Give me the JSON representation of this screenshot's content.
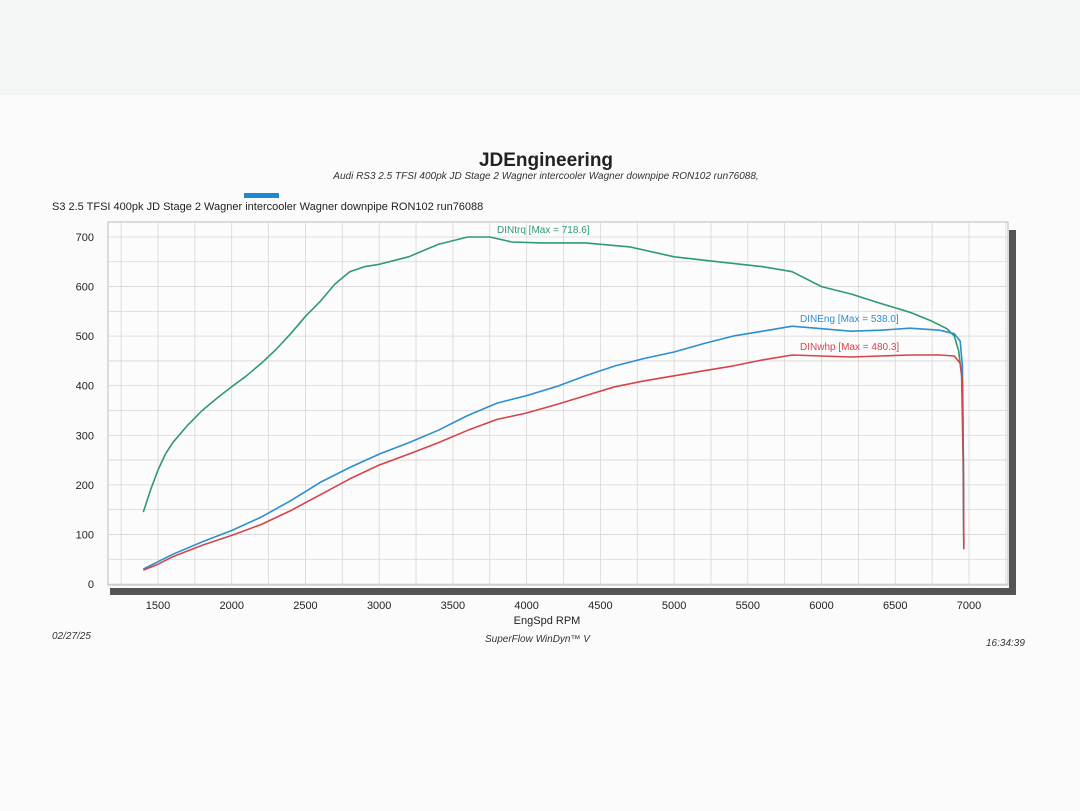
{
  "page": {
    "title": "JDEngineering",
    "subtitle": "Audi RS3 2.5 TFSI 400pk  JD Stage 2  Wagner intercooler Wagner downpipe  RON102  run76088,",
    "run_label": "S3 2.5 TFSI 400pk  JD Stage 2  Wagner intercooler Wagner downpipe  RON102  run76088",
    "date": "02/27/25",
    "software": "SuperFlow WinDyn™ V",
    "time": "16:34:39"
  },
  "chart_data": {
    "type": "line",
    "title": "",
    "xlabel": "EngSpd  RPM",
    "ylabel": "",
    "xlim": [
      1000,
      7300
    ],
    "ylim": [
      0,
      720
    ],
    "x_ticks": [
      1500,
      2000,
      2500,
      3000,
      3500,
      4000,
      4500,
      5000,
      5500,
      6000,
      6500,
      7000
    ],
    "y_ticks": [
      0,
      100,
      200,
      300,
      400,
      500,
      600,
      700
    ],
    "grid": true,
    "legend_color": "#1d8ad0",
    "series": [
      {
        "name": "DINtrq",
        "color": "#2f9a70",
        "annotation": "DINtrq [Max = 718.6]",
        "x": [
          1400,
          1450,
          1500,
          1550,
          1600,
          1700,
          1800,
          1900,
          2000,
          2100,
          2200,
          2300,
          2400,
          2500,
          2600,
          2700,
          2800,
          2900,
          3000,
          3200,
          3400,
          3600,
          3750,
          3900,
          4100,
          4400,
          4700,
          5000,
          5300,
          5600,
          5800,
          6000,
          6200,
          6400,
          6600,
          6750,
          6850,
          6900,
          6930,
          6950,
          6960,
          6965
        ],
        "y": [
          145,
          190,
          230,
          262,
          285,
          320,
          350,
          375,
          398,
          420,
          445,
          473,
          505,
          540,
          570,
          605,
          630,
          640,
          645,
          660,
          685,
          700,
          700,
          690,
          688,
          688,
          680,
          660,
          650,
          640,
          630,
          600,
          585,
          566,
          548,
          530,
          515,
          500,
          470,
          420,
          250,
          75
        ]
      },
      {
        "name": "DINEng",
        "color": "#2c8fd0",
        "annotation": "DINEng [Max = 538.0]",
        "x": [
          1400,
          1500,
          1600,
          1800,
          2000,
          2200,
          2400,
          2600,
          2800,
          3000,
          3200,
          3400,
          3600,
          3800,
          4000,
          4200,
          4400,
          4600,
          4800,
          5000,
          5200,
          5400,
          5600,
          5800,
          6000,
          6200,
          6400,
          6600,
          6800,
          6900,
          6940,
          6955,
          6962,
          6965
        ],
        "y": [
          30,
          45,
          60,
          85,
          108,
          135,
          168,
          205,
          235,
          262,
          285,
          310,
          340,
          365,
          380,
          398,
          420,
          440,
          455,
          468,
          485,
          500,
          510,
          520,
          515,
          510,
          512,
          516,
          512,
          505,
          490,
          440,
          250,
          80
        ]
      },
      {
        "name": "DINwhp",
        "color": "#d8434a",
        "annotation": "DINwhp [Max = 480.3]",
        "x": [
          1400,
          1500,
          1600,
          1800,
          2000,
          2200,
          2400,
          2600,
          2800,
          3000,
          3200,
          3400,
          3600,
          3800,
          4000,
          4200,
          4400,
          4600,
          4800,
          5000,
          5200,
          5400,
          5600,
          5800,
          6000,
          6200,
          6400,
          6600,
          6800,
          6900,
          6940,
          6955,
          6962,
          6965
        ],
        "y": [
          28,
          40,
          55,
          78,
          98,
          120,
          148,
          180,
          212,
          240,
          262,
          285,
          310,
          332,
          345,
          362,
          380,
          398,
          410,
          420,
          430,
          440,
          452,
          462,
          460,
          458,
          460,
          462,
          462,
          460,
          445,
          410,
          230,
          70
        ]
      }
    ]
  }
}
